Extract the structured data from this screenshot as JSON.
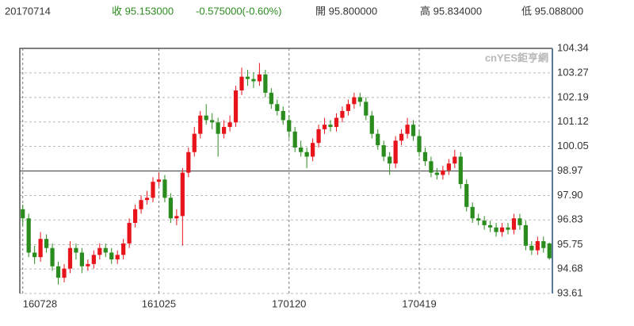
{
  "header": {
    "date": "20170714",
    "close": "收 95.153000",
    "change": "-0.575000(-0.60%)",
    "open": "開 95.800000",
    "high": "高 95.834000",
    "low": "低 95.088000"
  },
  "chart_data": {
    "type": "candlestick",
    "watermark": "cnYES鉅亨網",
    "categories": [
      "160728",
      null,
      null,
      null,
      null,
      null,
      null,
      null,
      null,
      null,
      null,
      null,
      null,
      null,
      null,
      null,
      null,
      null,
      null,
      null,
      null,
      null,
      null,
      "161025",
      null,
      null,
      null,
      null,
      null,
      null,
      null,
      null,
      null,
      null,
      null,
      null,
      null,
      null,
      null,
      null,
      null,
      null,
      null,
      null,
      null,
      "170120",
      null,
      null,
      null,
      null,
      null,
      null,
      null,
      null,
      null,
      null,
      null,
      null,
      null,
      null,
      null,
      null,
      null,
      null,
      null,
      null,
      null,
      "170419",
      null,
      null,
      null,
      null,
      null,
      null,
      null,
      null,
      null,
      null,
      null,
      null,
      null,
      null,
      null,
      null,
      null,
      null,
      null,
      null,
      null,
      null
    ],
    "open": [
      97.3,
      96.9,
      95.4,
      95.2,
      96.0,
      95.6,
      94.8,
      94.3,
      94.7,
      95.6,
      95.4,
      94.8,
      94.9,
      95.3,
      95.6,
      95.4,
      95.1,
      95.3,
      95.8,
      96.7,
      97.3,
      97.7,
      97.8,
      98.5,
      98.6,
      97.8,
      96.9,
      97.0,
      98.9,
      99.8,
      100.6,
      101.4,
      101.2,
      101.1,
      100.6,
      100.9,
      101.1,
      102.5,
      103.1,
      103.0,
      102.9,
      103.2,
      102.4,
      101.9,
      101.6,
      101.2,
      100.7,
      100.0,
      99.8,
      99.6,
      100.2,
      100.8,
      101.0,
      100.9,
      101.3,
      101.6,
      101.9,
      102.2,
      102.0,
      101.4,
      100.6,
      100.1,
      99.6,
      99.3,
      100.3,
      100.6,
      101.0,
      100.5,
      99.8,
      99.4,
      98.9,
      98.8,
      99.0,
      99.3,
      99.6,
      98.4,
      97.4,
      96.9,
      96.8,
      96.6,
      96.5,
      96.3,
      96.5,
      96.4,
      96.9,
      96.6,
      95.7,
      95.5,
      95.9,
      95.8
    ],
    "high": [
      97.5,
      97.1,
      95.7,
      96.3,
      96.2,
      95.8,
      95.0,
      94.9,
      95.9,
      95.8,
      95.6,
      95.1,
      95.5,
      95.8,
      95.8,
      95.6,
      95.5,
      96.0,
      96.9,
      97.5,
      97.9,
      98.1,
      98.7,
      98.9,
      98.8,
      98.0,
      97.3,
      99.1,
      100.0,
      100.9,
      101.6,
      101.9,
      101.5,
      101.3,
      101.2,
      101.4,
      102.7,
      103.5,
      103.4,
      103.3,
      103.7,
      103.4,
      102.6,
      102.1,
      101.8,
      101.4,
      100.9,
      100.3,
      100.0,
      100.4,
      101.0,
      101.3,
      101.2,
      101.5,
      101.8,
      102.1,
      102.4,
      102.4,
      102.2,
      101.6,
      100.8,
      100.3,
      99.8,
      100.5,
      100.8,
      101.3,
      101.2,
      100.7,
      100.0,
      99.6,
      99.1,
      99.2,
      99.5,
      99.9,
      99.8,
      98.6,
      97.6,
      97.1,
      97.0,
      96.8,
      96.7,
      96.7,
      96.7,
      97.1,
      97.1,
      96.8,
      95.9,
      96.1,
      96.1,
      95.834
    ],
    "low": [
      96.6,
      95.2,
      94.9,
      95.0,
      95.4,
      94.6,
      94.0,
      94.1,
      94.5,
      95.1,
      94.5,
      94.6,
      94.7,
      95.1,
      95.2,
      94.9,
      94.9,
      95.1,
      95.6,
      96.5,
      97.1,
      97.5,
      97.6,
      98.3,
      97.6,
      96.7,
      96.6,
      95.7,
      98.7,
      99.6,
      100.4,
      101.0,
      100.8,
      99.6,
      100.4,
      100.7,
      100.9,
      102.3,
      102.7,
      102.6,
      102.7,
      102.2,
      101.7,
      101.4,
      101.0,
      100.4,
      99.8,
      99.6,
      99.1,
      99.4,
      100.0,
      100.6,
      100.7,
      100.7,
      101.1,
      101.4,
      101.7,
      101.8,
      101.2,
      100.4,
      99.9,
      99.4,
      98.8,
      99.1,
      100.1,
      100.4,
      100.3,
      99.6,
      99.2,
      98.7,
      98.6,
      98.6,
      98.8,
      99.1,
      98.2,
      97.2,
      96.7,
      96.6,
      96.4,
      96.3,
      96.1,
      96.1,
      96.2,
      96.2,
      96.4,
      95.5,
      95.3,
      95.3,
      95.4,
      95.088
    ],
    "close": [
      96.9,
      95.4,
      95.2,
      96.0,
      95.6,
      94.8,
      94.3,
      94.7,
      95.6,
      95.4,
      94.8,
      94.9,
      95.3,
      95.6,
      95.4,
      95.1,
      95.3,
      95.8,
      96.7,
      97.3,
      97.7,
      97.8,
      98.5,
      98.6,
      97.8,
      96.9,
      97.0,
      98.9,
      99.8,
      100.6,
      101.4,
      101.2,
      101.1,
      100.6,
      100.9,
      101.1,
      102.5,
      103.1,
      103.0,
      102.9,
      103.2,
      102.4,
      101.9,
      101.6,
      101.2,
      100.7,
      100.0,
      99.8,
      99.6,
      100.2,
      100.8,
      101.0,
      100.9,
      101.3,
      101.6,
      101.9,
      102.2,
      102.0,
      101.4,
      100.6,
      100.1,
      99.6,
      99.3,
      100.3,
      100.6,
      101.0,
      100.5,
      99.8,
      99.4,
      98.9,
      98.8,
      99.0,
      99.3,
      99.6,
      98.4,
      97.4,
      96.9,
      96.8,
      96.6,
      96.5,
      96.3,
      96.5,
      96.4,
      96.9,
      96.6,
      95.7,
      95.5,
      95.9,
      95.6,
      95.153
    ],
    "up_color": "#e8141c",
    "down_color": "#2a8c1e",
    "ylim": [
      93.61,
      104.34
    ],
    "yticks": [
      93.61,
      94.68,
      95.75,
      96.83,
      {
        "value": 97.9,
        "label": "97.90"
      },
      98.97,
      100.05,
      101.12,
      102.19,
      103.27,
      104.34
    ],
    "baseline": 98.97,
    "grid": true
  }
}
